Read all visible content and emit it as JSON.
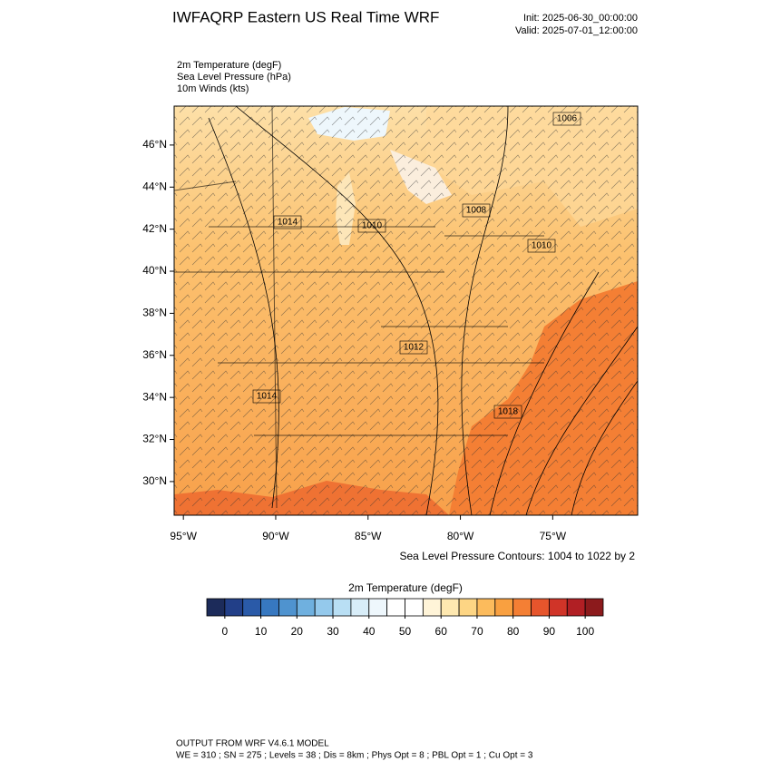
{
  "header": {
    "title": "IWFAQRP Eastern US Real Time WRF",
    "init": "Init: 2025-06-30_00:00:00",
    "valid": "Valid: 2025-07-01_12:00:00"
  },
  "fields": [
    "2m Temperature   (degF)",
    "Sea Level Pressure   (hPa)",
    "10m Winds   (kts)"
  ],
  "map": {
    "xlim": [
      -95.5,
      -70.4
    ],
    "ylim": [
      28.4,
      47.85
    ],
    "lat_ticks": [
      {
        "value": 30,
        "label": "30°N"
      },
      {
        "value": 32,
        "label": "32°N"
      },
      {
        "value": 34,
        "label": "34°N"
      },
      {
        "value": 36,
        "label": "36°N"
      },
      {
        "value": 38,
        "label": "38°N"
      },
      {
        "value": 40,
        "label": "40°N"
      },
      {
        "value": 42,
        "label": "42°N"
      },
      {
        "value": 44,
        "label": "44°N"
      },
      {
        "value": 46,
        "label": "46°N"
      }
    ],
    "lon_ticks": [
      {
        "value": -95,
        "label": "95°W"
      },
      {
        "value": -90,
        "label": "90°W"
      },
      {
        "value": -85,
        "label": "85°W"
      },
      {
        "value": -80,
        "label": "80°W"
      },
      {
        "value": -75,
        "label": "75°W"
      }
    ],
    "pressure_labels": [
      "1006",
      "1008",
      "1010",
      "1014",
      "1010",
      "1012",
      "1014",
      "1018"
    ],
    "contour_note": "Sea Level Pressure Contours: 1004 to 1022 by 2"
  },
  "colorbar": {
    "title": "2m Temperature  (degF)",
    "lim": [
      -5,
      105
    ],
    "ticks": [
      0,
      10,
      20,
      30,
      40,
      50,
      60,
      70,
      80,
      90,
      100
    ],
    "colors": [
      "#1c2b5a",
      "#223f88",
      "#2a5aa8",
      "#3778c0",
      "#4f93cf",
      "#6fb0df",
      "#94c9ec",
      "#b9dff4",
      "#d8edf8",
      "#eef7fc",
      "#ffffff",
      "#ffffff",
      "#fff4d8",
      "#fee8b0",
      "#fdd584",
      "#fcbb5c",
      "#f9a040",
      "#f47f34",
      "#e6552c",
      "#d03428",
      "#b11f24",
      "#8c1a1c"
    ]
  },
  "footer": {
    "line1": "OUTPUT FROM WRF V4.6.1 MODEL",
    "line2": "WE = 310 ; SN = 275 ; Levels = 38 ; Dis = 8km ; Phys Opt = 8 ; PBL Opt = 1 ; Cu Opt = 3"
  }
}
